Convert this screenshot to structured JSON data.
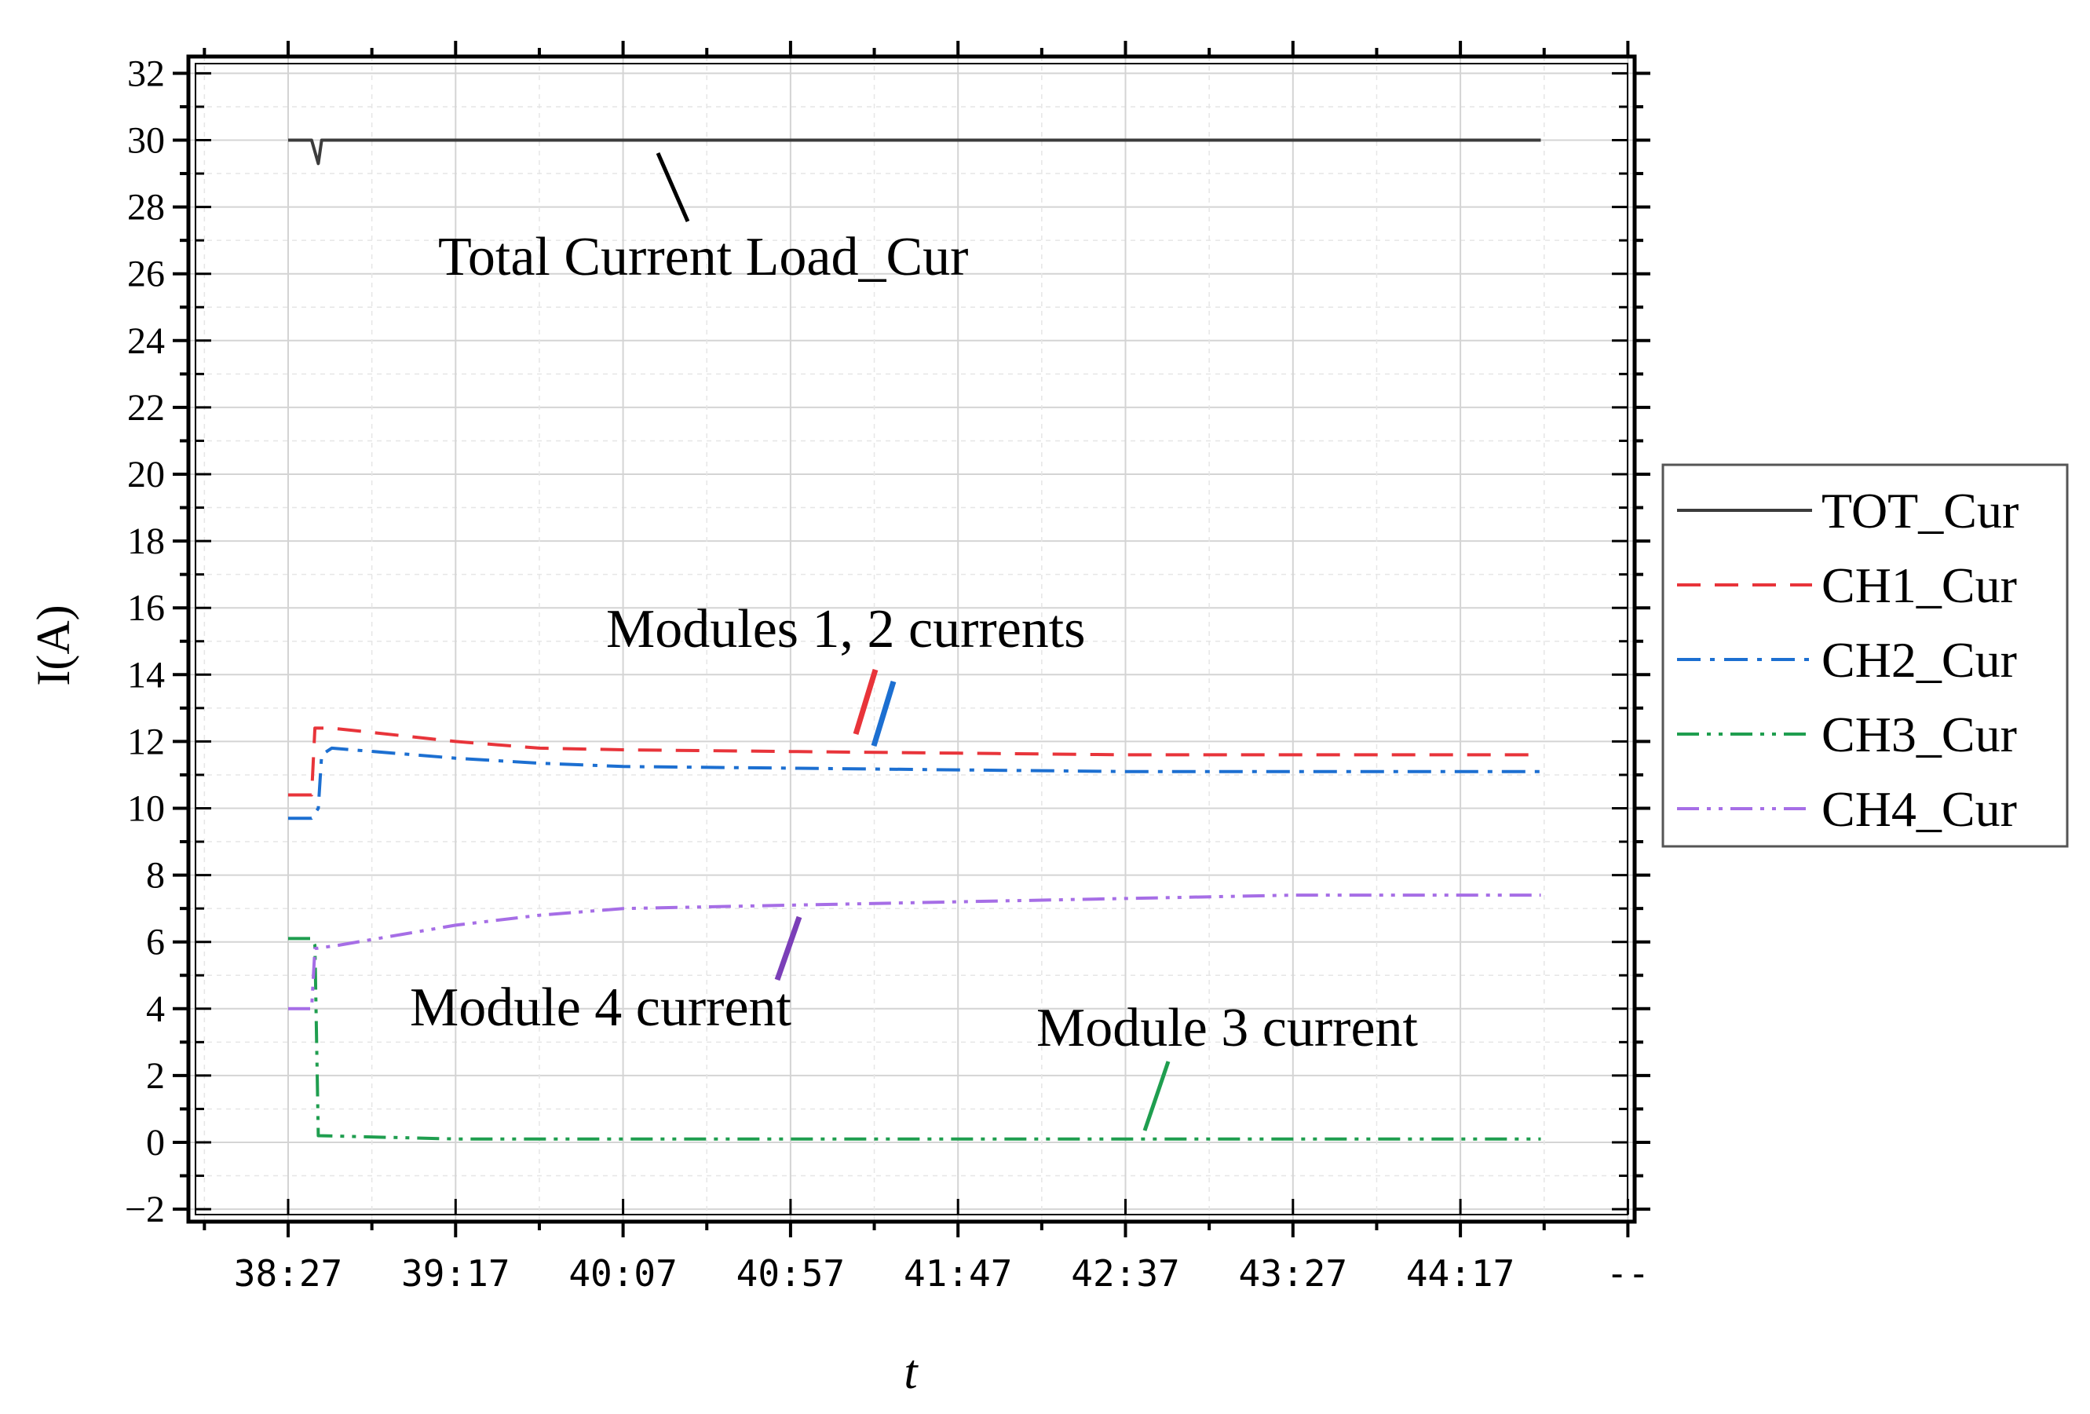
{
  "chart_data": {
    "type": "line",
    "xlabel": "t",
    "ylabel": "I(A)",
    "ylim": [
      -2,
      32
    ],
    "y_ticks": [
      "−2",
      "0",
      "2",
      "4",
      "6",
      "8",
      "10",
      "12",
      "14",
      "16",
      "18",
      "20",
      "22",
      "24",
      "26",
      "28",
      "30",
      "32"
    ],
    "x_ticks": [
      "38:27",
      "39:17",
      "40:07",
      "40:57",
      "41:47",
      "42:37",
      "43:27",
      "44:17",
      "--"
    ],
    "grid": true,
    "legend_position": "right",
    "series": [
      {
        "name": "TOT_Cur",
        "color": "#3c3c3c",
        "dash": "solid",
        "points": [
          [
            "38:27",
            30.0
          ],
          [
            "38:34",
            30.0
          ],
          [
            "38:36",
            29.3
          ],
          [
            "38:37",
            30.0
          ],
          [
            "39:17",
            30.0
          ],
          [
            "40:07",
            30.0
          ],
          [
            "40:57",
            30.0
          ],
          [
            "41:47",
            30.0
          ],
          [
            "42:37",
            30.0
          ],
          [
            "43:27",
            30.0
          ],
          [
            "44:17",
            30.0
          ],
          [
            "44:41",
            30.0
          ]
        ]
      },
      {
        "name": "CH1_Cur",
        "color": "#e8343a",
        "dash": "dashed",
        "points": [
          [
            "38:27",
            10.4
          ],
          [
            "38:34",
            10.4
          ],
          [
            "38:35",
            12.4
          ],
          [
            "38:40",
            12.4
          ],
          [
            "39:17",
            12.0
          ],
          [
            "39:42",
            11.8
          ],
          [
            "40:07",
            11.75
          ],
          [
            "40:57",
            11.7
          ],
          [
            "41:47",
            11.65
          ],
          [
            "42:37",
            11.6
          ],
          [
            "43:27",
            11.6
          ],
          [
            "44:17",
            11.6
          ],
          [
            "44:41",
            11.6
          ]
        ]
      },
      {
        "name": "CH2_Cur",
        "color": "#1c6fd1",
        "dash": "dashdot",
        "points": [
          [
            "38:27",
            9.7
          ],
          [
            "38:34",
            9.7
          ],
          [
            "38:36",
            10.0
          ],
          [
            "38:37",
            11.6
          ],
          [
            "38:40",
            11.8
          ],
          [
            "39:17",
            11.5
          ],
          [
            "39:42",
            11.35
          ],
          [
            "40:07",
            11.25
          ],
          [
            "40:57",
            11.2
          ],
          [
            "41:47",
            11.15
          ],
          [
            "42:37",
            11.1
          ],
          [
            "43:27",
            11.1
          ],
          [
            "44:17",
            11.1
          ],
          [
            "44:41",
            11.1
          ]
        ]
      },
      {
        "name": "CH3_Cur",
        "color": "#1f9e4f",
        "dash": "dashdotdot",
        "points": [
          [
            "38:27",
            6.1
          ],
          [
            "38:34",
            6.1
          ],
          [
            "38:35",
            5.9
          ],
          [
            "38:36",
            0.2
          ],
          [
            "39:17",
            0.1
          ],
          [
            "40:07",
            0.1
          ],
          [
            "40:57",
            0.1
          ],
          [
            "41:47",
            0.1
          ],
          [
            "42:37",
            0.1
          ],
          [
            "43:27",
            0.1
          ],
          [
            "44:17",
            0.1
          ],
          [
            "44:41",
            0.1
          ]
        ]
      },
      {
        "name": "CH4_Cur",
        "color": "#a66ee6",
        "dash": "dashdotdot",
        "points": [
          [
            "38:27",
            4.0
          ],
          [
            "38:34",
            4.0
          ],
          [
            "38:35",
            5.8
          ],
          [
            "38:42",
            5.9
          ],
          [
            "39:17",
            6.5
          ],
          [
            "39:42",
            6.8
          ],
          [
            "40:07",
            7.0
          ],
          [
            "40:57",
            7.1
          ],
          [
            "41:47",
            7.2
          ],
          [
            "42:37",
            7.3
          ],
          [
            "43:27",
            7.4
          ],
          [
            "44:17",
            7.4
          ],
          [
            "44:41",
            7.4
          ]
        ]
      }
    ],
    "annotations": [
      {
        "text": "Total Current Load_Cur",
        "pointer_color": "#000000",
        "points_to": "TOT_Cur"
      },
      {
        "text": "Modules 1, 2 currents",
        "pointer_color": "#e8343a",
        "points_to": "CH1_Cur / CH2_Cur"
      },
      {
        "text": "Module 4 current",
        "pointer_color": "#7b3fb8",
        "points_to": "CH4_Cur"
      },
      {
        "text": "Module 3 current",
        "pointer_color": "#1f9e4f",
        "points_to": "CH3_Cur"
      }
    ]
  }
}
